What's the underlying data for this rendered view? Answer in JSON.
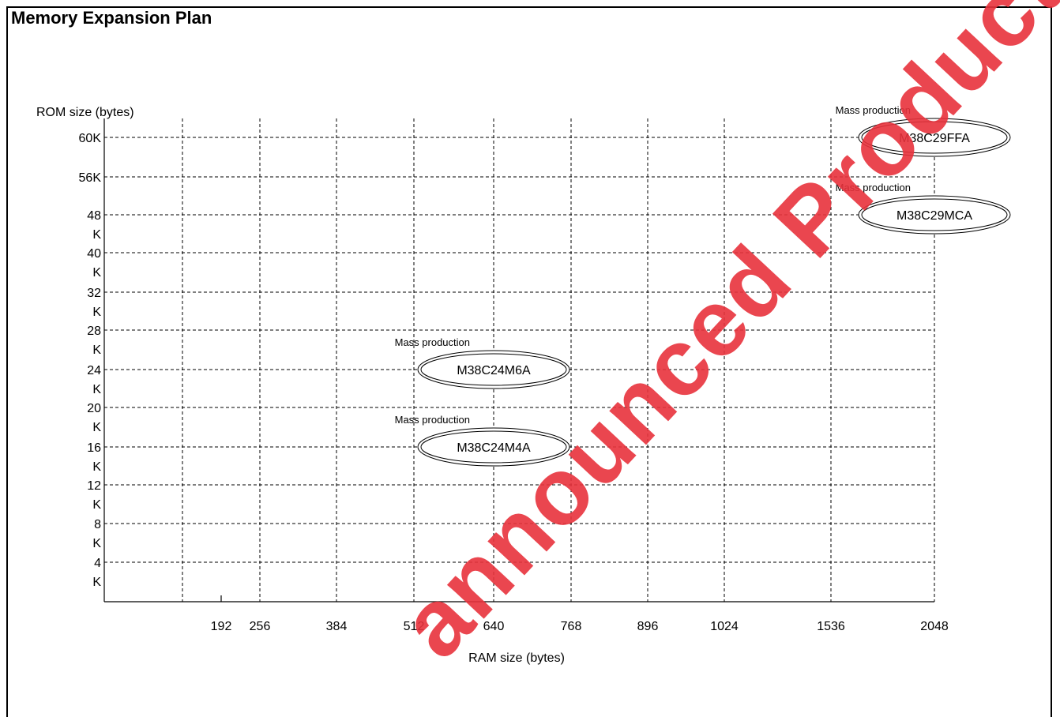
{
  "page": {
    "title": "Memory Expansion Plan",
    "watermark": "announced Product"
  },
  "chart_data": {
    "type": "scatter",
    "title": "",
    "xlabel": "RAM size (bytes)",
    "ylabel": "ROM size (bytes)",
    "x_ticks": [
      "192",
      "256",
      "384",
      "512",
      "640",
      "768",
      "896",
      "1024",
      "1536",
      "2048"
    ],
    "y_ticks": [
      "60K",
      "56K",
      "48\nK",
      "40\nK",
      "32\nK",
      "28\nK",
      "24\nK",
      "20\nK",
      "16\nK",
      "12\nK",
      "8\nK",
      "4\nK"
    ],
    "grid": true,
    "points": [
      {
        "name": "M38C29FFA",
        "status": "Mass production",
        "x": "2048",
        "y": "60K"
      },
      {
        "name": "M38C29MCA",
        "status": "Mass production",
        "x": "2048",
        "y": "48K"
      },
      {
        "name": "M38C24M6A",
        "status": "Mass production",
        "x": "640",
        "y": "24K"
      },
      {
        "name": "M38C24M4A",
        "status": "Mass production",
        "x": "640",
        "y": "16K"
      }
    ],
    "colors": {
      "grid": "#000000",
      "watermark": "#e8323c"
    }
  }
}
